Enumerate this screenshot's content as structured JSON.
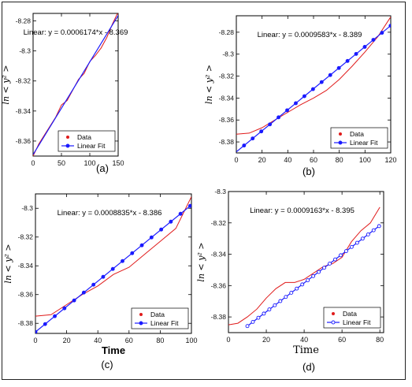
{
  "chart_data": [
    {
      "type": "line",
      "panel_label": "(a)",
      "annotation": "Linear:  y = 0.0006174*x - 8.369",
      "xlabel": "",
      "ylabel": "ln < y² >",
      "xlim": [
        0,
        150
      ],
      "ylim": [
        -8.37,
        -8.275
      ],
      "xticks": [
        0,
        50,
        100,
        150
      ],
      "yticks": [
        -8.28,
        -8.3,
        -8.32,
        -8.34,
        -8.36
      ],
      "legend": {
        "placement": "lower-right",
        "entries": [
          "Data",
          "Linear Fit"
        ]
      },
      "fit": {
        "slope": 0.0006174,
        "intercept": -8.369,
        "x_range": [
          0,
          150
        ]
      },
      "series": [
        {
          "name": "Data",
          "style": "red-line",
          "x": [
            0,
            10,
            20,
            30,
            40,
            50,
            60,
            70,
            80,
            90,
            100,
            110,
            120,
            130,
            140,
            150
          ],
          "y": [
            -8.37,
            -8.362,
            -8.356,
            -8.35,
            -8.344,
            -8.336,
            -8.333,
            -8.326,
            -8.319,
            -8.315,
            -8.307,
            -8.303,
            -8.298,
            -8.291,
            -8.282,
            -8.274
          ]
        }
      ]
    },
    {
      "type": "line",
      "panel_label": "(b)",
      "annotation": "Linear:  y = 0.0009583*x - 8.389",
      "xlabel": "",
      "ylabel": "ln < y² >",
      "xlim": [
        0,
        120
      ],
      "ylim": [
        -8.39,
        -8.265
      ],
      "xticks": [
        0,
        20,
        40,
        60,
        80,
        100,
        120
      ],
      "yticks": [
        -8.28,
        -8.3,
        -8.32,
        -8.34,
        -8.36,
        -8.38
      ],
      "legend": {
        "placement": "lower-right",
        "entries": [
          "Data",
          "Linear Fit"
        ]
      },
      "fit": {
        "slope": 0.0009583,
        "intercept": -8.389,
        "x_range": [
          0,
          120
        ],
        "marker_step": 6.7
      },
      "series": [
        {
          "name": "Data",
          "style": "red-line",
          "x": [
            0,
            10,
            20,
            30,
            40,
            50,
            60,
            70,
            80,
            90,
            100,
            110,
            120
          ],
          "y": [
            -8.373,
            -8.372,
            -8.367,
            -8.36,
            -8.353,
            -8.346,
            -8.34,
            -8.333,
            -8.323,
            -8.311,
            -8.298,
            -8.284,
            -8.266
          ]
        }
      ]
    },
    {
      "type": "line",
      "panel_label": "(c)",
      "annotation": "Linear:  y = 0.0008835*x - 8.386",
      "xlabel": "Time",
      "ylabel": "ln < y² >",
      "xlim": [
        0,
        100
      ],
      "ylim": [
        -8.387,
        -8.29
      ],
      "xticks": [
        0,
        20,
        40,
        60,
        80,
        100
      ],
      "yticks": [
        -8.3,
        -8.32,
        -8.34,
        -8.36,
        -8.38
      ],
      "legend": {
        "placement": "lower-right",
        "entries": [
          "Data",
          "Linear Fit"
        ]
      },
      "fit": {
        "slope": 0.0008835,
        "intercept": -8.386,
        "x_range": [
          0,
          100
        ],
        "marker_step": 6.2
      },
      "series": [
        {
          "name": "Data",
          "style": "red-line",
          "x": [
            0,
            10,
            20,
            30,
            40,
            50,
            60,
            70,
            80,
            90,
            100
          ],
          "y": [
            -8.375,
            -8.374,
            -8.367,
            -8.36,
            -8.354,
            -8.346,
            -8.341,
            -8.332,
            -8.323,
            -8.314,
            -8.292
          ]
        }
      ]
    },
    {
      "type": "line",
      "panel_label": "(d)",
      "annotation": "Linear:  y = 0.0009163*x - 8.395",
      "xlabel": "Time",
      "ylabel": "ln < y² >",
      "xlim": [
        0,
        82
      ],
      "ylim": [
        -8.39,
        -8.3
      ],
      "xticks": [
        0,
        20,
        40,
        60,
        80
      ],
      "yticks": [
        -8.3,
        -8.32,
        -8.34,
        -8.36,
        -8.38
      ],
      "legend": {
        "placement": "lower-right",
        "entries": [
          "Data",
          "Linear Fit"
        ]
      },
      "fit": {
        "slope": 0.0009163,
        "intercept": -8.395,
        "x_range": [
          10,
          80
        ],
        "marker_step": 2.9
      },
      "series": [
        {
          "name": "Data",
          "style": "red-line",
          "x": [
            0,
            5,
            10,
            15,
            20,
            25,
            30,
            35,
            40,
            45,
            50,
            55,
            60,
            65,
            70,
            75,
            80
          ],
          "y": [
            -8.385,
            -8.384,
            -8.38,
            -8.375,
            -8.368,
            -8.362,
            -8.358,
            -8.358,
            -8.356,
            -8.352,
            -8.348,
            -8.346,
            -8.342,
            -8.332,
            -8.325,
            -8.32,
            -8.31
          ]
        }
      ]
    }
  ]
}
